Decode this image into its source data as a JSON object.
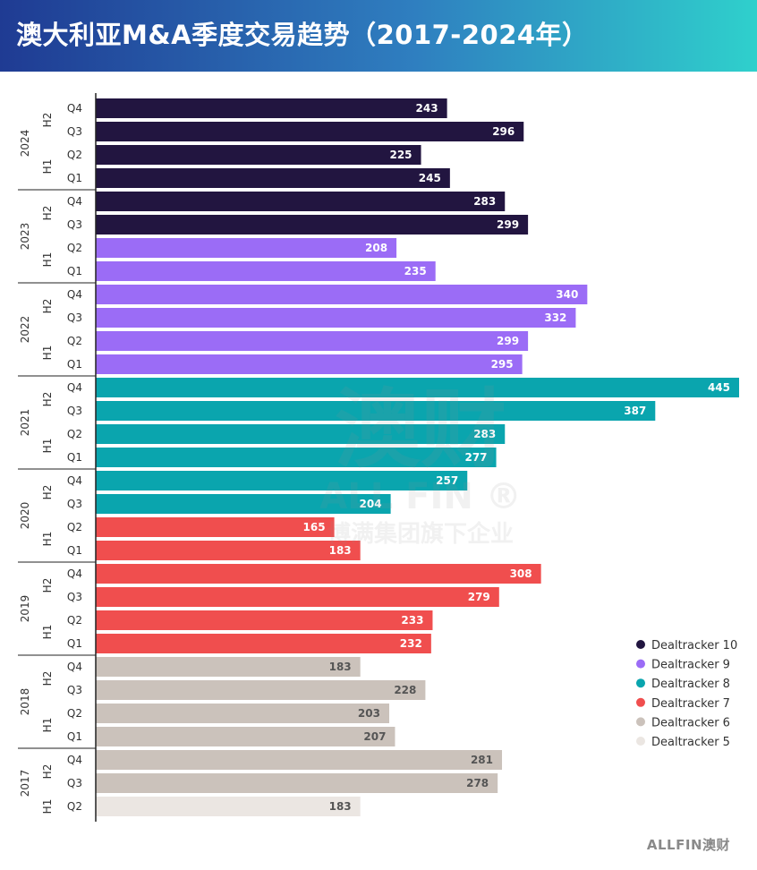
{
  "header": {
    "title": "澳大利亚M&A季度交易趋势（2017-2024年）"
  },
  "chart_data": {
    "type": "bar",
    "orientation": "horizontal",
    "title": "澳大利亚M&A季度交易趋势（2017-2024年）",
    "xlim": [
      0,
      445
    ],
    "grid": false,
    "legend_position": "right",
    "rows": [
      {
        "year": "2024",
        "half": "H2",
        "quarter": "Q4",
        "value": 243,
        "series": "Dealtracker 10"
      },
      {
        "year": "2024",
        "half": "H2",
        "quarter": "Q3",
        "value": 296,
        "series": "Dealtracker 10"
      },
      {
        "year": "2024",
        "half": "H1",
        "quarter": "Q2",
        "value": 225,
        "series": "Dealtracker 10"
      },
      {
        "year": "2024",
        "half": "H1",
        "quarter": "Q1",
        "value": 245,
        "series": "Dealtracker 10"
      },
      {
        "year": "2023",
        "half": "H2",
        "quarter": "Q4",
        "value": 283,
        "series": "Dealtracker 10"
      },
      {
        "year": "2023",
        "half": "H2",
        "quarter": "Q3",
        "value": 299,
        "series": "Dealtracker 10"
      },
      {
        "year": "2023",
        "half": "H1",
        "quarter": "Q2",
        "value": 208,
        "series": "Dealtracker 9"
      },
      {
        "year": "2023",
        "half": "H1",
        "quarter": "Q1",
        "value": 235,
        "series": "Dealtracker 9"
      },
      {
        "year": "2022",
        "half": "H2",
        "quarter": "Q4",
        "value": 340,
        "series": "Dealtracker 9"
      },
      {
        "year": "2022",
        "half": "H2",
        "quarter": "Q3",
        "value": 332,
        "series": "Dealtracker 9"
      },
      {
        "year": "2022",
        "half": "H1",
        "quarter": "Q2",
        "value": 299,
        "series": "Dealtracker 9"
      },
      {
        "year": "2022",
        "half": "H1",
        "quarter": "Q1",
        "value": 295,
        "series": "Dealtracker 9"
      },
      {
        "year": "2021",
        "half": "H2",
        "quarter": "Q4",
        "value": 445,
        "series": "Dealtracker 8"
      },
      {
        "year": "2021",
        "half": "H2",
        "quarter": "Q3",
        "value": 387,
        "series": "Dealtracker 8"
      },
      {
        "year": "2021",
        "half": "H1",
        "quarter": "Q2",
        "value": 283,
        "series": "Dealtracker 8"
      },
      {
        "year": "2021",
        "half": "H1",
        "quarter": "Q1",
        "value": 277,
        "series": "Dealtracker 8"
      },
      {
        "year": "2020",
        "half": "H2",
        "quarter": "Q4",
        "value": 257,
        "series": "Dealtracker 8"
      },
      {
        "year": "2020",
        "half": "H2",
        "quarter": "Q3",
        "value": 204,
        "series": "Dealtracker 8"
      },
      {
        "year": "2020",
        "half": "H1",
        "quarter": "Q2",
        "value": 165,
        "series": "Dealtracker 7"
      },
      {
        "year": "2020",
        "half": "H1",
        "quarter": "Q1",
        "value": 183,
        "series": "Dealtracker 7"
      },
      {
        "year": "2019",
        "half": "H2",
        "quarter": "Q4",
        "value": 308,
        "series": "Dealtracker 7"
      },
      {
        "year": "2019",
        "half": "H2",
        "quarter": "Q3",
        "value": 279,
        "series": "Dealtracker 7"
      },
      {
        "year": "2019",
        "half": "H1",
        "quarter": "Q2",
        "value": 233,
        "series": "Dealtracker 7"
      },
      {
        "year": "2019",
        "half": "H1",
        "quarter": "Q1",
        "value": 232,
        "series": "Dealtracker 7"
      },
      {
        "year": "2018",
        "half": "H2",
        "quarter": "Q4",
        "value": 183,
        "series": "Dealtracker 6"
      },
      {
        "year": "2018",
        "half": "H2",
        "quarter": "Q3",
        "value": 228,
        "series": "Dealtracker 6"
      },
      {
        "year": "2018",
        "half": "H1",
        "quarter": "Q2",
        "value": 203,
        "series": "Dealtracker 6"
      },
      {
        "year": "2018",
        "half": "H1",
        "quarter": "Q1",
        "value": 207,
        "series": "Dealtracker 6"
      },
      {
        "year": "2017",
        "half": "H2",
        "quarter": "Q4",
        "value": 281,
        "series": "Dealtracker 6"
      },
      {
        "year": "2017",
        "half": "H2",
        "quarter": "Q3",
        "value": 278,
        "series": "Dealtracker 6"
      },
      {
        "year": "2017",
        "half": "H1",
        "quarter": "Q2",
        "value": 183,
        "series": "Dealtracker 5"
      }
    ],
    "series": [
      {
        "name": "Dealtracker 10",
        "color": "#221540",
        "label_color": "#ffffff"
      },
      {
        "name": "Dealtracker 9",
        "color": "#9b6cf6",
        "label_color": "#ffffff"
      },
      {
        "name": "Dealtracker 8",
        "color": "#0aa5ae",
        "label_color": "#ffffff"
      },
      {
        "name": "Dealtracker 7",
        "color": "#f04e4e",
        "label_color": "#ffffff"
      },
      {
        "name": "Dealtracker 6",
        "color": "#cbc2bb",
        "label_color": "#555555"
      },
      {
        "name": "Dealtracker 5",
        "color": "#ebe6e2",
        "label_color": "#555555"
      }
    ]
  },
  "watermark": {
    "big": "澳财",
    "mid": "ALL FIN ®",
    "small": "博满集团旗下企业"
  },
  "footer": {
    "logo_text": "ALLFIN澳财"
  }
}
